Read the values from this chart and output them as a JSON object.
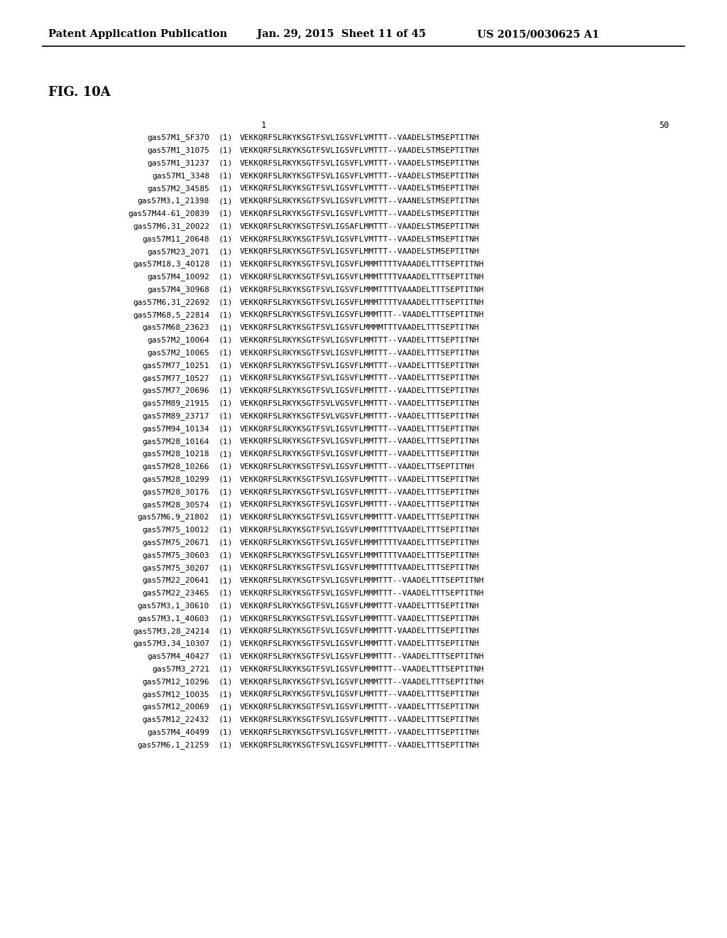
{
  "header_left": "Patent Application Publication",
  "header_mid": "Jan. 29, 2015  Sheet 11 of 45",
  "header_right": "US 2015/0030625 A1",
  "fig_label": "FIG. 10A",
  "col_num_label_1": "1",
  "col_num_label_50": "50",
  "background_color": "#ffffff",
  "rows": [
    {
      "name": "gas57M1_SF370",
      "num": "(1)",
      "seq": "VEKKQRFSLRKYKSGTFSVLIGSVFLVMTTT--VAADELSTMSEPTITNH"
    },
    {
      "name": "gas57M1_31075",
      "num": "(1)",
      "seq": "VEKKQRFSLRKYKSGTFSVLIGSVFLVMTTT--VAADELSTMSEPTITNH"
    },
    {
      "name": "gas57M1_31237",
      "num": "(1)",
      "seq": "VEKKQRFSLRKYKSGTFSVLIGSVFLVMTTT--VAADELSTMSEPTITNH"
    },
    {
      "name": "gas57M1_3348",
      "num": "(1)",
      "seq": "VEKKQRFSLRKYKSGTFSVLIGSVFLVMTTT--VAADELSTMSEPTITNH"
    },
    {
      "name": "gas57M2_34585",
      "num": "(1)",
      "seq": "VEKKQRFSLRKYKSGTFSVLIGSVFLVMTTT--VAADELSTMSEPTITNH"
    },
    {
      "name": "gas57M3,1_21398",
      "num": "(1)",
      "seq": "VEKKQRFSLRKYKSGTFSVLIGSVFLVMTTT--VAANELSTMSEPTITNH"
    },
    {
      "name": "gas57M44-61_20839",
      "num": "(1)",
      "seq": "VEKKQRFSLRKYKSGTFSVLIGSVFLVMTTT--VAADELSTMSEPTITNH"
    },
    {
      "name": "gas57M6,31_20022",
      "num": "(1)",
      "seq": "VEKKQRFSLRKYKSGTFSVLIGSAFLMMTTT--VAADELSTMSEPTITNH"
    },
    {
      "name": "gas57M11_20648",
      "num": "(1)",
      "seq": "VEKKQRFSLRKYKSGTFSVLIGSVFLVMTTT--VAADELSTMSEPTITNH"
    },
    {
      "name": "gas57M23_2071",
      "num": "(1)",
      "seq": "VEKKQRFSLRKYKSGTFSVLIGSVFLMMTTT--VAADELSTMSEPTITNH"
    },
    {
      "name": "gas57M18,3_40128",
      "num": "(1)",
      "seq": "VEKKQRFSLRKYKSGTFSVLIGSVFLMMMTTTTVAAADELTTTSEPTITNH"
    },
    {
      "name": "gas57M4_10092",
      "num": "(1)",
      "seq": "VEKKQRFSLRKYKSGTFSVLIGSVFLMMMTTTTVAAADELTTTSEPTITNH"
    },
    {
      "name": "gas57M4_30968",
      "num": "(1)",
      "seq": "VEKKQRFSLRKYKSGTFSVLIGSVFLMMMTTTTVAAADELTTTSEPTITNH"
    },
    {
      "name": "gas57M6,31_22692",
      "num": "(1)",
      "seq": "VEKKQRFSLRKYKSGTFSVLIGSVFLMMMTTTTVAAADELTTTSEPTITNH"
    },
    {
      "name": "gas57M68,5_22814",
      "num": "(1)",
      "seq": "VEKKQRFSLRKYKSGTFSVLIGSVFLMMMTTT--VAADELTTTSEPTITNH"
    },
    {
      "name": "gas57M68_23623",
      "num": "(1)",
      "seq": "VEKKQRFSLRKYKSGTFSVLIGSVFLMMMMTTTVAADELTTTSEPTITNH"
    },
    {
      "name": "gas57M2_10064",
      "num": "(1)",
      "seq": "VEKKQRFSLRKYKSGTFSVLIGSVFLMMTTT--VAADELTTTSEPTITNH"
    },
    {
      "name": "gas57M2_10065",
      "num": "(1)",
      "seq": "VEKKQRFSLRKYKSGTFSVLIGSVFLMMTTT--VAADELTTTSEPTITNH"
    },
    {
      "name": "gas57M77_10251",
      "num": "(1)",
      "seq": "VEKKQRFSLRKYKSGTFSVLIGSVFLMMTTT--VAADELTTTSEPTITNH"
    },
    {
      "name": "gas57M77_10527",
      "num": "(1)",
      "seq": "VEKKQRFSLRKYKSGTFSVLIGSVFLMMTTT--VAADELTTTSEPTITNH"
    },
    {
      "name": "gas57M77_20696",
      "num": "(1)",
      "seq": "VEKKQRFSLRKYKSGTFSVLIGSVFLMMTTT--VAADELTTTSEPTITNH"
    },
    {
      "name": "gas57M89_21915",
      "num": "(1)",
      "seq": "VEKKQRFSLRKYKSGTFSVLVGSVFLMMTTT--VAADELTTTSEPTITNH"
    },
    {
      "name": "gas57M89_23717",
      "num": "(1)",
      "seq": "VEKKQRFSLRKYKSGTFSVLVGSVFLMMTTT--VAADELTTTSEPTITNH"
    },
    {
      "name": "gas57M94_10134",
      "num": "(1)",
      "seq": "VEKKQRFSLRKYKSGTFSVLIGSVFLMMTTT--VAADELTTTSEPTITNH"
    },
    {
      "name": "gas57M28_10164",
      "num": "(1)",
      "seq": "VEKKQRFSLRKYKSGTFSVLIGSVFLMMTTT--VAADELTTTSEPTITNH"
    },
    {
      "name": "gas57M28_10218",
      "num": "(1)",
      "seq": "VEKKQRFSLRKYKSGTFSVLIGSVFLMMTTT--VAADELTTTSEPTITNH"
    },
    {
      "name": "gas57M28_10266",
      "num": "(1)",
      "seq": "VEKKQRFSLRKYKSGTFSVLIGSVFLMMTTT--VAADELTTSEPTITNH"
    },
    {
      "name": "gas57M28_10299",
      "num": "(1)",
      "seq": "VEKKQRFSLRKYKSGTFSVLIGSVFLMMTTT--VAADELTTTSEPTITNH"
    },
    {
      "name": "gas57M28_30176",
      "num": "(1)",
      "seq": "VEKKQRFSLRKYKSGTFSVLIGSVFLMMTTT--VAADELTTTSEPTITNH"
    },
    {
      "name": "gas57M28_30574",
      "num": "(1)",
      "seq": "VEKKQRFSLRKYKSGTFSVLIGSVFLMMTTT--VAADELTTTSEPTITNH"
    },
    {
      "name": "gas57M6,9_21802",
      "num": "(1)",
      "seq": "VEKKQRFSLRKYKSGTFSVLIGSVFLMMMTTT-VAADELTTTSEPTITNH"
    },
    {
      "name": "gas57M75_10012",
      "num": "(1)",
      "seq": "VEKKQRFSLRKYKSGTFSVLIGSVFLMMMTTTTVAADELTTTSEPTITNH"
    },
    {
      "name": "gas57M75_20671",
      "num": "(1)",
      "seq": "VEKKQRFSLRKYKSGTFSVLIGSVFLMMMTTTTVAADELTTTSEPTITNH"
    },
    {
      "name": "gas57M75_30603",
      "num": "(1)",
      "seq": "VEKKQRFSLRKYKSGTFSVLIGSVFLMMMTTTTVAADELTTTSEPTITNH"
    },
    {
      "name": "gas57M75_30207",
      "num": "(1)",
      "seq": "VEKKQRFSLRKYKSGTFSVLIGSVFLMMMTTTTVAADELTTTSEPTITNH"
    },
    {
      "name": "gas57M22_20641",
      "num": "(1)",
      "seq": "VEKKQRFSLRKYKSGTFSVLIGSVFLMMMTTT--VAADELTTTSEPTITNH"
    },
    {
      "name": "gas57M22_23465",
      "num": "(1)",
      "seq": "VEKKQRFSLRKYKSGTFSVLIGSVFLMMMTTT--VAADELTTTSEPTITNH"
    },
    {
      "name": "gas57M3,1_30610",
      "num": "(1)",
      "seq": "VEKKQRFSLRKYKSGTFSVLIGSVFLMMMTTT-VAADELTTTSEPTITNH"
    },
    {
      "name": "gas57M3,1_40603",
      "num": "(1)",
      "seq": "VEKKQRFSLRKYKSGTFSVLIGSVFLMMMTTT-VAADELTTTSEPTITNH"
    },
    {
      "name": "gas57M3,28_24214",
      "num": "(1)",
      "seq": "VEKKQRFSLRKYKSGTFSVLIGSVFLMMMTTT-VAADELTTTSEPTITNH"
    },
    {
      "name": "gas57M3,34_10307",
      "num": "(1)",
      "seq": "VEKKQRFSLRKYKSGTFSVLIGSVFLMMMTTT-VAADELTTTSEPTITNH"
    },
    {
      "name": "gas57M4_40427",
      "num": "(1)",
      "seq": "VEKKQRFSLRKYKSGTFSVLIGSVFLMMMTTT--VAADELTTTSEPTITNH"
    },
    {
      "name": "gas57M3_2721",
      "num": "(1)",
      "seq": "VEKKQRFSLRKYKSGTFSVLIGSVFLMMMTTT--VAADELTTTSEPTITNH"
    },
    {
      "name": "gas57M12_10296",
      "num": "(1)",
      "seq": "VEKKQRFSLRKYKSGTFSVLIGSVFLMMMTTT--VAADELTTTSEPTITNH"
    },
    {
      "name": "gas57M12_10035",
      "num": "(1)",
      "seq": "VEKKQRFSLRKYKSGTFSVLIGSVFLMMTTT--VAADELTTTSEPTITNH"
    },
    {
      "name": "gas57M12_20069",
      "num": "(1)",
      "seq": "VEKKQRFSLRKYKSGTFSVLIGSVFLMMTTT--VAADELTTTSEPTITNH"
    },
    {
      "name": "gas57M12_22432",
      "num": "(1)",
      "seq": "VEKKQRFSLRKYKSGTFSVLIGSVFLMMTTT--VAADELTTTSEPTITNH"
    },
    {
      "name": "gas57M4_40499",
      "num": "(1)",
      "seq": "VEKKQRFSLRKYKSGTFSVLIGSVFLMMTTT--VAADELTTTSEPTITNH"
    },
    {
      "name": "gas57M6,1_21259",
      "num": "(1)",
      "seq": "VEKKQRFSLRKYKSGTFSVLIGSVFLMMTTT--VAADELTTTSEPTITNH"
    }
  ]
}
